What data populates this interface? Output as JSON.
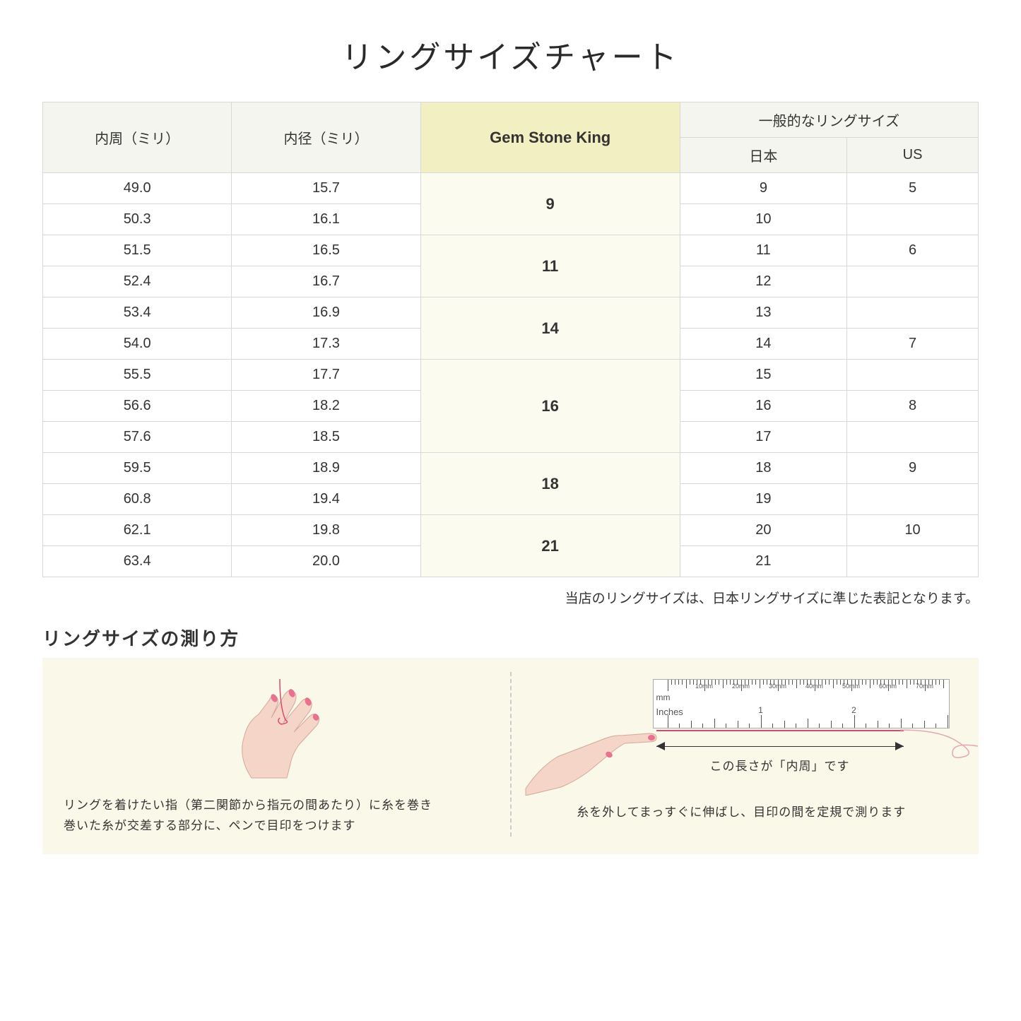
{
  "title": "リングサイズチャート",
  "headers": {
    "circumference": "内周（ミリ）",
    "diameter": "内径（ミリ）",
    "gsk": "Gem Stone King",
    "general": "一般的なリングサイズ",
    "japan": "日本",
    "us": "US"
  },
  "rows": [
    {
      "circ": "49.0",
      "dia": "15.7",
      "jp": "9",
      "us": "5"
    },
    {
      "circ": "50.3",
      "dia": "16.1",
      "jp": "10",
      "us": ""
    },
    {
      "circ": "51.5",
      "dia": "16.5",
      "jp": "11",
      "us": "6"
    },
    {
      "circ": "52.4",
      "dia": "16.7",
      "jp": "12",
      "us": ""
    },
    {
      "circ": "53.4",
      "dia": "16.9",
      "jp": "13",
      "us": ""
    },
    {
      "circ": "54.0",
      "dia": "17.3",
      "jp": "14",
      "us": "7"
    },
    {
      "circ": "55.5",
      "dia": "17.7",
      "jp": "15",
      "us": ""
    },
    {
      "circ": "56.6",
      "dia": "18.2",
      "jp": "16",
      "us": "8"
    },
    {
      "circ": "57.6",
      "dia": "18.5",
      "jp": "17",
      "us": ""
    },
    {
      "circ": "59.5",
      "dia": "18.9",
      "jp": "18",
      "us": "9"
    },
    {
      "circ": "60.8",
      "dia": "19.4",
      "jp": "19",
      "us": ""
    },
    {
      "circ": "62.1",
      "dia": "19.8",
      "jp": "20",
      "us": "10"
    },
    {
      "circ": "63.4",
      "dia": "20.0",
      "jp": "21",
      "us": ""
    }
  ],
  "gsk_groups": [
    {
      "label": "9",
      "span": 2
    },
    {
      "label": "11",
      "span": 2
    },
    {
      "label": "14",
      "span": 2
    },
    {
      "label": "16",
      "span": 3
    },
    {
      "label": "18",
      "span": 2
    },
    {
      "label": "21",
      "span": 2
    }
  ],
  "note": "当店のリングサイズは、日本リングサイズに準じた表記となります。",
  "subtitle": "リングサイズの測り方",
  "howto_left": "リングを着けたい指（第二関節から指元の間あたり）に糸を巻き\n巻いた糸が交差する部分に、ペンで目印をつけます",
  "howto_right": "糸を外してまっすぐに伸ばし、目印の間を定規で測ります",
  "measure_label": "この長さが「内周」です",
  "ruler": {
    "mm_label": "mm",
    "inches_label": "Inches",
    "mm_ticks": [
      "10mm",
      "20mm",
      "30mm",
      "40mm",
      "50mm",
      "60mm",
      "70mm"
    ],
    "inch_labels": [
      "1",
      "2"
    ]
  },
  "colors": {
    "header_bg": "#f5f5f0",
    "highlight_header_bg": "#f2f0c2",
    "highlight_cell_bg": "#fcfbef",
    "border": "#d8d8d8",
    "howto_bg": "#faf8e8",
    "thread": "#d94a6a",
    "skin": "#f4d5c8",
    "nail": "#e8718f"
  }
}
